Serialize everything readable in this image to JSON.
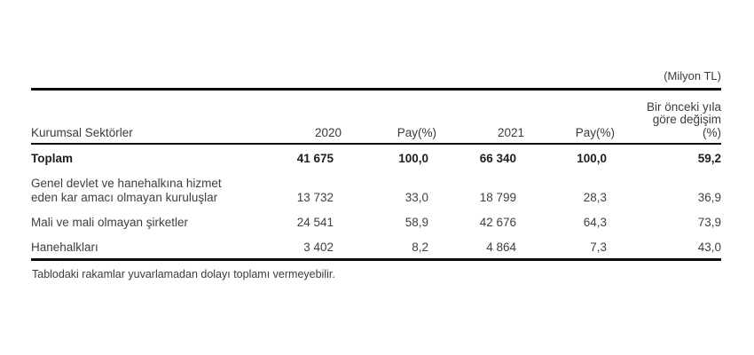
{
  "unit_label": "(Milyon TL)",
  "table": {
    "headers": {
      "sector": "Kurumsal Sektörler",
      "col_2020": "2020",
      "col_pay_2020": "Pay(%)",
      "col_2021": "2021",
      "col_pay_2021": "Pay(%)",
      "col_change_line1": "Bir önceki yıla",
      "col_change_line2": "göre değişim",
      "col_change_line3": "(%)"
    },
    "rows": [
      {
        "label": "Toplam",
        "v2020": "41 675",
        "pay2020": "100,0",
        "v2021": "66 340",
        "pay2021": "100,0",
        "change": "59,2"
      },
      {
        "label": "Genel devlet ve hanehalkına hizmet",
        "label2": "eden kar amacı olmayan kuruluşlar",
        "v2020": "13 732",
        "pay2020": "33,0",
        "v2021": "18 799",
        "pay2021": "28,3",
        "change": "36,9"
      },
      {
        "label": "Mali ve mali olmayan şirketler",
        "v2020": "24 541",
        "pay2020": "58,9",
        "v2021": "42 676",
        "pay2021": "64,3",
        "change": "73,9"
      },
      {
        "label": "Hanehalkları",
        "v2020": "3 402",
        "pay2020": "8,2",
        "v2021": "4 864",
        "pay2021": "7,3",
        "change": "43,0"
      }
    ]
  },
  "footnote": "Tablodaki rakamlar yuvarlamadan dolayı toplamı vermeyebilir.",
  "colors": {
    "background": "#ffffff",
    "text": "#3b3b3b",
    "bold_text": "#1e1e1e",
    "rule": "#0d0d0d"
  },
  "chart_data": {
    "type": "table",
    "title": "(Milyon TL)",
    "columns": [
      "Kurumsal Sektörler",
      "2020",
      "Pay(%)",
      "2021",
      "Pay(%)",
      "Bir önceki yıla göre değişim (%)"
    ],
    "rows": [
      [
        "Toplam",
        41675,
        100.0,
        66340,
        100.0,
        59.2
      ],
      [
        "Genel devlet ve hanehalkına hizmet eden kar amacı olmayan kuruluşlar",
        13732,
        33.0,
        18799,
        28.3,
        36.9
      ],
      [
        "Mali ve mali olmayan şirketler",
        24541,
        58.9,
        42676,
        64.3,
        73.9
      ],
      [
        "Hanehalkları",
        3402,
        8.2,
        4864,
        7.3,
        43.0
      ]
    ],
    "footnote": "Tablodaki rakamlar yuvarlamadan dolayı toplamı vermeyebilir."
  }
}
